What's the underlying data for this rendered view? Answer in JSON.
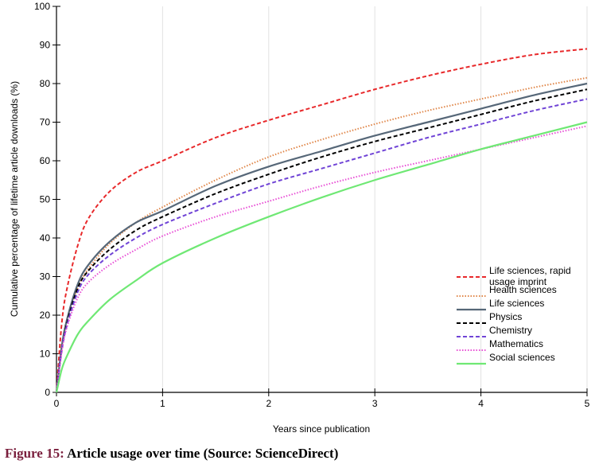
{
  "chart_data": {
    "type": "line",
    "xlabel": "Years since publication",
    "ylabel": "Cumulative percentage of lifetime article downloads (%)",
    "xlim": [
      0,
      5
    ],
    "ylim": [
      0,
      100
    ],
    "x_ticks": [
      0,
      1,
      2,
      3,
      4,
      5
    ],
    "y_ticks": [
      0,
      10,
      20,
      30,
      40,
      50,
      60,
      70,
      80,
      90,
      100
    ],
    "grid": "vertical",
    "legend_position": "bottom-right",
    "x": [
      0,
      0.05,
      0.1,
      0.2,
      0.3,
      0.5,
      0.75,
      1,
      1.5,
      2,
      2.5,
      3,
      3.5,
      4,
      4.5,
      5
    ],
    "series": [
      {
        "name": "Life sciences, rapid usage imprint",
        "color": "#e8292b",
        "dash": "dashed",
        "values": [
          0,
          18,
          27,
          38,
          45,
          52,
          57,
          60,
          66,
          70.5,
          74.5,
          78.5,
          82,
          85,
          87.5,
          89
        ]
      },
      {
        "name": "Health sciences",
        "color": "#e0874a",
        "dash": "dotted",
        "values": [
          0,
          12,
          19,
          27,
          32,
          38.5,
          44,
          48,
          55,
          61,
          65.5,
          69.5,
          73,
          76,
          79,
          81.5
        ]
      },
      {
        "name": "Life sciences",
        "color": "#566778",
        "dash": "solid",
        "values": [
          0,
          12,
          19,
          28,
          33,
          39,
          44,
          47,
          53.5,
          58.5,
          62.5,
          66.5,
          70,
          73.5,
          77,
          80
        ]
      },
      {
        "name": "Physics",
        "color": "#000000",
        "dash": "dashed",
        "values": [
          0,
          11,
          18,
          27,
          31.5,
          37,
          42,
          45.5,
          51.5,
          56.5,
          61,
          65,
          68.5,
          72,
          75.5,
          78.5
        ]
      },
      {
        "name": "Chemistry",
        "color": "#7044d6",
        "dash": "dashed",
        "values": [
          0,
          11,
          17.5,
          26,
          30.5,
          35.5,
          40,
          43.5,
          49,
          54,
          58,
          62,
          66,
          69.5,
          73,
          76
        ]
      },
      {
        "name": "Mathematics",
        "color": "#e84fd6",
        "dash": "dotted",
        "values": [
          0,
          10.5,
          17,
          24.5,
          28.5,
          33,
          37,
          40.5,
          45.5,
          49.5,
          53.5,
          57,
          60,
          63,
          66,
          69
        ]
      },
      {
        "name": "Social sciences",
        "color": "#6fe874",
        "dash": "solid",
        "values": [
          0,
          6,
          9.5,
          15,
          18.5,
          24,
          29,
          33.5,
          40,
          45.5,
          50.5,
          55,
          59,
          63,
          66.5,
          70
        ]
      }
    ]
  },
  "caption": {
    "lead": "Figure 15:",
    "text": " Article usage over time (Source: ScienceDirect)"
  }
}
